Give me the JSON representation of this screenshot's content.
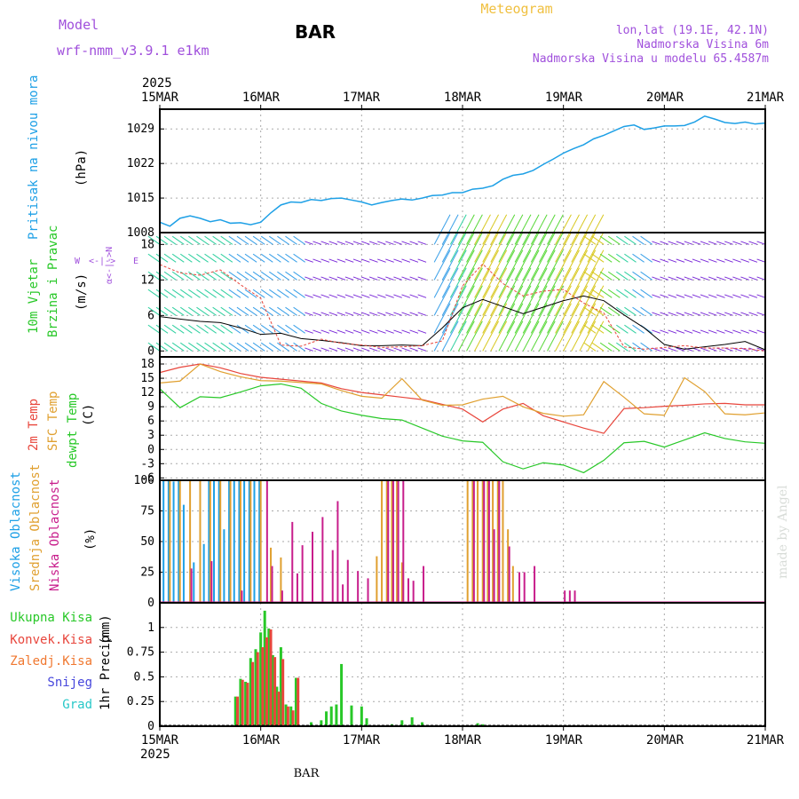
{
  "header": {
    "model_label": "Model",
    "model_name": "wrf-nmm_v3.9.1 e1km",
    "station": "BAR",
    "meteogram": "Meteogram",
    "lonlat": "lon,lat (19.1E, 42.1N)",
    "elevation": "Nadmorska Visina 6m",
    "model_elevation": "Nadmorska Visina u modelu 65.4587m",
    "year_top": "2025",
    "year_bottom": "2025",
    "footer_station": "BAR",
    "watermark": "made by Angel"
  },
  "colors": {
    "pressure": "#1ea0e6",
    "temp2m": "#e8463c",
    "sfc_temp": "#e0a030",
    "dewpt": "#28c828",
    "high_cloud": "#1ea0e6",
    "mid_cloud": "#e0a030",
    "low_cloud": "#c81e8c",
    "total_precip": "#28c828",
    "conv_precip": "#e8463c",
    "frozen": "#f07830",
    "snow": "#4646dc",
    "hail": "#28c8c8",
    "header_purple": "#a050dc",
    "header_orange": "#f0c040"
  },
  "chart_data": [
    {
      "type": "line",
      "panel": "pressure",
      "ylabel_main": "Pritisak na nivou mora",
      "ylabel_unit": "(hPa)",
      "x_ticks": [
        "15MAR",
        "16MAR",
        "17MAR",
        "18MAR",
        "19MAR",
        "20MAR",
        "21MAR"
      ],
      "y_ticks": [
        1008,
        1015,
        1022,
        1029
      ],
      "ylim": [
        1008,
        1033
      ],
      "grid": true,
      "series": [
        {
          "x": [
            0,
            0.1,
            0.2,
            0.3,
            0.4,
            0.5,
            0.6,
            0.7,
            0.8,
            0.9,
            1.0,
            1.1,
            1.2,
            1.3,
            1.4,
            1.5,
            1.6,
            1.7,
            1.8,
            1.9,
            2.0,
            2.1,
            2.2,
            2.3,
            2.4,
            2.5,
            2.6,
            2.7,
            2.8,
            2.9,
            3.0,
            3.1,
            3.2,
            3.3,
            3.4,
            3.5,
            3.6,
            3.7,
            3.8,
            3.9,
            4.0,
            4.1,
            4.2,
            4.3,
            4.4,
            4.5,
            4.6,
            4.7,
            4.8,
            4.9,
            5.0,
            5.1,
            5.2,
            5.3,
            5.4,
            5.5,
            5.6,
            5.7,
            5.8,
            5.9,
            6.0
          ],
          "y": [
            1010.1,
            1009.3,
            1010.9,
            1011.4,
            1010.9,
            1010.2,
            1010.6,
            1009.9,
            1010.0,
            1009.6,
            1010.1,
            1012.0,
            1013.6,
            1014.2,
            1014.1,
            1014.7,
            1014.5,
            1014.9,
            1015.0,
            1014.6,
            1014.2,
            1013.6,
            1014.1,
            1014.5,
            1014.8,
            1014.6,
            1015.0,
            1015.5,
            1015.6,
            1016.1,
            1016.1,
            1016.8,
            1017.0,
            1017.5,
            1018.8,
            1019.6,
            1019.9,
            1020.6,
            1021.8,
            1022.9,
            1024.1,
            1025.0,
            1025.8,
            1027.0,
            1027.7,
            1028.6,
            1029.5,
            1029.8,
            1028.9,
            1029.2,
            1029.6,
            1029.6,
            1029.7,
            1030.4,
            1031.6,
            1031.0,
            1030.3,
            1030.1,
            1030.4,
            1030.0,
            1030.2
          ]
        }
      ]
    },
    {
      "type": "line",
      "panel": "wind",
      "ylabel_main": "10m Vjetar",
      "ylabel_sub": "Brzina i Pravac",
      "ylabel_unit": "(m/s)",
      "compass_note": "N, S, E, W",
      "y_ticks": [
        0,
        6,
        12,
        18
      ],
      "ylim": [
        -1,
        20
      ],
      "grid": true,
      "series": [
        {
          "name": "wind speed",
          "x": [
            0,
            0.2,
            0.4,
            0.6,
            0.8,
            1.0,
            1.2,
            1.4,
            1.6,
            1.8,
            2.0,
            2.2,
            2.4,
            2.6,
            2.8,
            3.0,
            3.2,
            3.4,
            3.6,
            3.8,
            4.0,
            4.2,
            4.4,
            4.6,
            4.8,
            5.0,
            5.2,
            5.4,
            5.6,
            5.8,
            6.0
          ],
          "y": [
            5.8,
            5.4,
            5.0,
            4.8,
            3.9,
            2.8,
            3.0,
            2.1,
            1.8,
            1.4,
            0.9,
            0.9,
            1.0,
            0.9,
            3.9,
            7.3,
            8.7,
            7.5,
            6.3,
            7.4,
            8.5,
            9.3,
            8.5,
            6.1,
            3.9,
            1.1,
            0.3,
            0.7,
            1.1,
            1.6,
            0.2
          ]
        },
        {
          "name": "wind gust",
          "x": [
            0,
            0.2,
            0.4,
            0.6,
            0.8,
            1.0,
            1.2,
            1.4,
            1.6,
            1.8,
            2.0,
            2.2,
            2.4,
            2.6,
            2.8,
            3.0,
            3.2,
            3.4,
            3.6,
            3.8,
            4.0,
            4.2,
            4.4,
            4.6,
            4.8,
            5.0,
            5.2,
            5.4,
            5.6,
            5.8,
            6.0
          ],
          "y": [
            14.6,
            13.2,
            12.8,
            13.7,
            11.2,
            8.9,
            1.0,
            0.8,
            2.0,
            1.3,
            1.0,
            0.6,
            0.7,
            0.9,
            1.7,
            11.0,
            14.7,
            11.4,
            9.3,
            10.1,
            10.4,
            8.1,
            6.4,
            0.7,
            0.3,
            0.6,
            0.9,
            0.5,
            0.5,
            0.4,
            0.0
          ]
        }
      ]
    },
    {
      "type": "line",
      "panel": "temperature",
      "ylabel_1": "2m Temp",
      "ylabel_2": "SFC Temp",
      "ylabel_3": "dewpt Temp",
      "ylabel_unit": "(C)",
      "y_ticks": [
        -6,
        -3,
        0,
        3,
        6,
        9,
        12,
        15,
        18
      ],
      "ylim": [
        -6.5,
        19.5
      ],
      "grid": true,
      "series": [
        {
          "name": "2m Temp",
          "x": [
            0,
            0.2,
            0.4,
            0.6,
            0.8,
            1.0,
            1.2,
            1.4,
            1.6,
            1.8,
            2.0,
            2.2,
            2.4,
            2.6,
            2.8,
            3.0,
            3.2,
            3.4,
            3.6,
            3.8,
            4.0,
            4.2,
            4.4,
            4.6,
            4.8,
            5.0,
            5.2,
            5.4,
            5.6,
            5.8,
            6.0
          ],
          "y": [
            16.2,
            17.3,
            18.0,
            17.2,
            16.0,
            15.2,
            14.8,
            14.4,
            14.0,
            12.8,
            12.0,
            11.5,
            11.0,
            10.5,
            9.5,
            8.5,
            5.8,
            8.5,
            9.7,
            7.1,
            5.8,
            4.5,
            3.4,
            8.6,
            8.8,
            9.1,
            9.3,
            9.6,
            9.7,
            9.4,
            9.4
          ]
        },
        {
          "name": "SFC Temp",
          "x": [
            0,
            0.2,
            0.4,
            0.6,
            0.8,
            1.0,
            1.2,
            1.4,
            1.6,
            1.8,
            2.0,
            2.2,
            2.4,
            2.6,
            2.8,
            3.0,
            3.2,
            3.4,
            3.6,
            3.8,
            4.0,
            4.2,
            4.4,
            4.6,
            4.8,
            5.0,
            5.2,
            5.4,
            5.6,
            5.8,
            6.0
          ],
          "y": [
            14.0,
            14.4,
            18.0,
            16.4,
            15.3,
            14.5,
            14.4,
            14.1,
            13.8,
            12.4,
            11.2,
            10.8,
            14.9,
            10.4,
            9.3,
            9.4,
            10.6,
            11.2,
            9.0,
            7.6,
            7.0,
            7.3,
            14.3,
            11.0,
            7.5,
            7.2,
            15.1,
            12.2,
            7.5,
            7.3,
            7.7
          ]
        },
        {
          "name": "dewpt Temp",
          "x": [
            0,
            0.2,
            0.4,
            0.6,
            0.8,
            1.0,
            1.2,
            1.4,
            1.6,
            1.8,
            2.0,
            2.2,
            2.4,
            2.6,
            2.8,
            3.0,
            3.2,
            3.4,
            3.6,
            3.8,
            4.0,
            4.2,
            4.4,
            4.6,
            4.8,
            5.0,
            5.2,
            5.4,
            5.6,
            5.8,
            6.0
          ],
          "y": [
            12.8,
            8.8,
            11.1,
            10.9,
            12.1,
            13.4,
            13.8,
            12.9,
            9.7,
            8.1,
            7.2,
            6.5,
            6.2,
            4.5,
            2.8,
            1.8,
            1.5,
            -2.6,
            -4.1,
            -2.8,
            -3.3,
            -4.9,
            -2.3,
            1.4,
            1.7,
            0.5,
            2.0,
            3.5,
            2.3,
            1.6,
            1.3
          ]
        }
      ]
    },
    {
      "type": "bar",
      "panel": "cloud",
      "ylabel_1": "Visoka Oblacnost",
      "ylabel_2": "Srednja Oblacnost",
      "ylabel_3": "Niska Oblacnost",
      "ylabel_unit": "(%)",
      "y_ticks": [
        0,
        25,
        50,
        75,
        100
      ],
      "ylim": [
        0,
        100
      ],
      "grid": true,
      "series": [
        {
          "name": "Visoka Oblacnost",
          "x": [
            0.05,
            0.1,
            0.15,
            0.2,
            0.25,
            0.35,
            0.45,
            0.5,
            0.55,
            0.6,
            0.65,
            0.7,
            0.75,
            0.8,
            0.85,
            0.9,
            0.95,
            1.0
          ],
          "y": [
            100,
            100,
            99,
            100,
            80,
            33,
            48,
            100,
            100,
            100,
            60,
            100,
            100,
            100,
            100,
            100,
            100,
            100
          ]
        },
        {
          "name": "Srednja Oblacnost",
          "x": [
            0.0,
            0.1,
            0.2,
            0.3,
            0.4,
            0.5,
            0.6,
            0.7,
            0.8,
            0.9,
            1.0,
            1.1,
            1.2,
            2.15,
            2.2,
            2.25,
            2.3,
            2.35,
            2.4,
            3.05,
            3.1,
            3.15,
            3.2,
            3.25,
            3.3,
            3.35,
            3.4,
            3.45,
            3.5
          ],
          "y": [
            100,
            100,
            100,
            100,
            100,
            100,
            100,
            100,
            100,
            100,
            100,
            45,
            37,
            38,
            100,
            100,
            100,
            100,
            33,
            100,
            100,
            100,
            100,
            100,
            100,
            100,
            100,
            60,
            30
          ]
        },
        {
          "name": "Niska Oblacnost",
          "x": [
            0.3,
            0.5,
            0.8,
            1.05,
            1.1,
            1.2,
            1.3,
            1.35,
            1.4,
            1.5,
            1.6,
            1.7,
            1.75,
            1.8,
            1.85,
            1.95,
            2.05,
            2.25,
            2.3,
            2.35,
            2.4,
            2.45,
            2.5,
            2.6,
            3.1,
            3.2,
            3.25,
            3.3,
            3.35,
            3.45,
            3.55,
            3.6,
            3.7,
            4.0,
            4.05,
            4.1
          ],
          "y": [
            28,
            34,
            10,
            100,
            30,
            10,
            66,
            24,
            47,
            58,
            70,
            43,
            83,
            15,
            35,
            26,
            20,
            100,
            100,
            100,
            100,
            20,
            18,
            30,
            100,
            100,
            100,
            60,
            100,
            46,
            25,
            25,
            30,
            10,
            10,
            10
          ]
        }
      ]
    },
    {
      "type": "bar",
      "panel": "precip",
      "ylabel_main": "1hr Precip",
      "ylabel_unit": "(mm)",
      "legend": [
        "Ukupna Kisa",
        "Konvek.Kisa",
        "Zaledj.Kisa",
        "Snijeg",
        "Grad"
      ],
      "y_ticks": [
        0,
        0.25,
        0.5,
        0.75,
        1
      ],
      "ylim": [
        0,
        1.25
      ],
      "grid": true,
      "series": [
        {
          "name": "Ukupna Kisa",
          "x": [
            0.75,
            0.8,
            0.85,
            0.9,
            0.95,
            1.0,
            1.04,
            1.08,
            1.12,
            1.16,
            1.2,
            1.25,
            1.3,
            1.35,
            1.5,
            1.6,
            1.65,
            1.7,
            1.75,
            1.8,
            1.9,
            2.0,
            2.05,
            2.3,
            2.4,
            2.5,
            2.6,
            3.15,
            3.2,
            4.25
          ],
          "y": [
            0.3,
            0.48,
            0.45,
            0.69,
            0.78,
            0.95,
            1.17,
            0.99,
            0.72,
            0.4,
            0.8,
            0.22,
            0.2,
            0.49,
            0.04,
            0.06,
            0.15,
            0.2,
            0.22,
            0.63,
            0.21,
            0.2,
            0.08,
            0.02,
            0.06,
            0.09,
            0.04,
            0.03,
            0.02,
            0.01
          ]
        },
        {
          "name": "Konvek.Kisa",
          "x": [
            0.77,
            0.82,
            0.87,
            0.92,
            0.97,
            1.02,
            1.06,
            1.1,
            1.14,
            1.18,
            1.22,
            1.27,
            1.32,
            1.37
          ],
          "y": [
            0.3,
            0.47,
            0.44,
            0.65,
            0.75,
            0.8,
            0.9,
            0.98,
            0.7,
            0.35,
            0.68,
            0.2,
            0.16,
            0.49
          ]
        },
        {
          "name": "Zaledj.Kisa",
          "x": [],
          "y": []
        },
        {
          "name": "Snijeg",
          "x": [],
          "y": []
        },
        {
          "name": "Grad",
          "x": [],
          "y": []
        }
      ]
    }
  ]
}
